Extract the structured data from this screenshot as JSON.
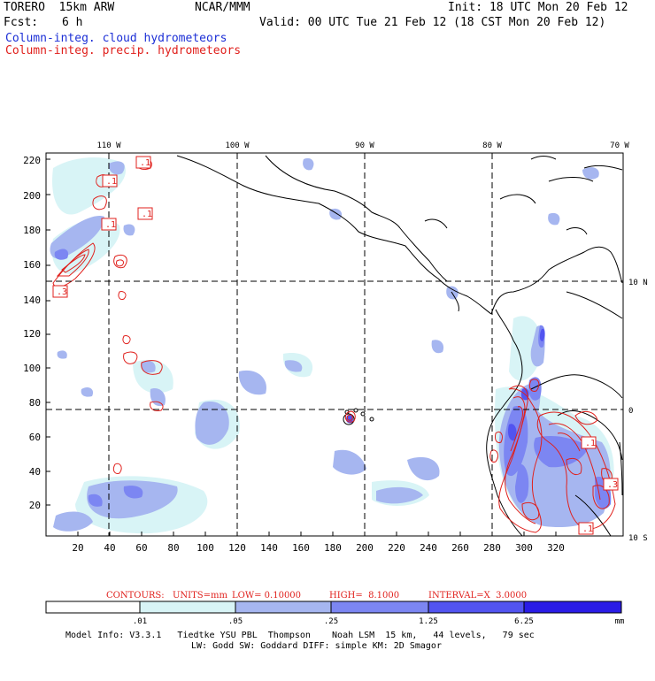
{
  "header": {
    "model": "TORERO  15km ARW",
    "org": "NCAR/MMM",
    "init": "Init: 18 UTC Mon 20 Feb 12",
    "fcst_label": "Fcst:",
    "fcst_value": "6 h",
    "valid": "Valid: 00 UTC Tue 21 Feb 12 (18 CST Mon 20 Feb 12)",
    "field_cloud": "Column-integ. cloud hydrometeors",
    "field_precip": "Column-integ. precip. hydrometeors"
  },
  "colors": {
    "cloud_text": "#1c2fd6",
    "precip_contour": "#e0201c",
    "fill_levels": [
      "#ffffff",
      "#d8f4f6",
      "#a6b6f0",
      "#7c86f2",
      "#5254f0",
      "#2a1ce6"
    ]
  },
  "map": {
    "top_lon_labels": [
      "110 W",
      "100 W",
      "90 W",
      "80 W",
      "70 W"
    ],
    "right_lat_labels": [
      "10 N",
      "0",
      "10 S"
    ],
    "left_ticks": [
      "220",
      "200",
      "180",
      "160",
      "140",
      "120",
      "100",
      "80",
      "60",
      "40",
      "20"
    ],
    "bottom_ticks": [
      "20",
      "40",
      "60",
      "80",
      "100",
      "120",
      "140",
      "160",
      "180",
      "200",
      "220",
      "240",
      "260",
      "280",
      "300",
      "320"
    ],
    "contour_labels": [
      ".1",
      ".1",
      ".1",
      ".1",
      ".3",
      ".1",
      ".3",
      ".1"
    ]
  },
  "contour_info": {
    "contours": "CONTOURS:",
    "units": "UNITS=mm",
    "low": "LOW= 0.10000",
    "high": "HIGH=  8.1000",
    "interval": "INTERVAL=X  3.0000"
  },
  "colorbar": {
    "labels": [
      ".01",
      ".05",
      ".25",
      "1.25",
      "6.25"
    ],
    "unit": "mm"
  },
  "footer": {
    "line1": "Model Info: V3.3.1   Tiedtke YSU PBL  Thompson    Noah LSM  15 km,   44 levels,   79 sec",
    "line2": "LW: Godd SW: Goddard DIFF: simple KM: 2D Smagor"
  }
}
